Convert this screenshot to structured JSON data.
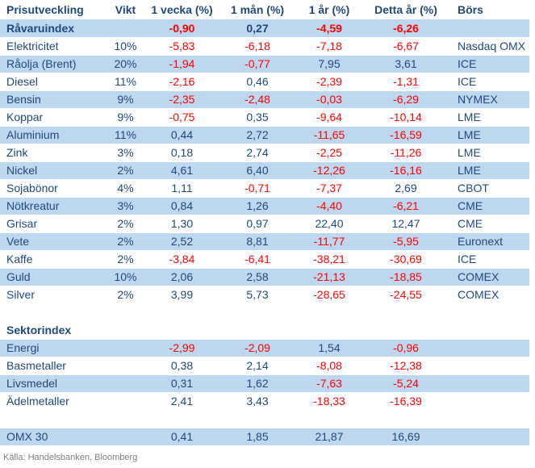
{
  "colors": {
    "text-blue": "#1F497D",
    "negative-red": "#FF0000",
    "row-shade": "#BDD7EE",
    "footer-gray": "#7F7F7F"
  },
  "table": {
    "columns": [
      {
        "key": "label",
        "label": "Prisutveckling",
        "align": "left",
        "numeric": false
      },
      {
        "key": "vikt",
        "label": "Vikt",
        "align": "center",
        "numeric": false
      },
      {
        "key": "v1w",
        "label": "1 vecka (%)",
        "align": "center",
        "numeric": true
      },
      {
        "key": "v1m",
        "label": "1 mån (%)",
        "align": "center",
        "numeric": true
      },
      {
        "key": "v1y",
        "label": "1 år (%)",
        "align": "center",
        "numeric": true
      },
      {
        "key": "ytd",
        "label": "Detta år (%)",
        "align": "center",
        "numeric": true
      },
      {
        "key": "bors",
        "label": "Börs",
        "align": "left",
        "numeric": false
      }
    ],
    "rows": [
      {
        "label": "Råvaruindex",
        "vikt": "",
        "v1w": "-0,90",
        "v1m": "0,27",
        "v1y": "-4,59",
        "ytd": "-6,26",
        "bors": "",
        "bold": true,
        "shade": true
      },
      {
        "label": "Elektricitet",
        "vikt": "10%",
        "v1w": "-5,83",
        "v1m": "-6,18",
        "v1y": "-7,18",
        "ytd": "-6,67",
        "bors": "Nasdaq OMX"
      },
      {
        "label": "Råolja (Brent)",
        "vikt": "20%",
        "v1w": "-1,94",
        "v1m": "-0,77",
        "v1y": "7,95",
        "ytd": "3,61",
        "bors": "ICE",
        "shade": true
      },
      {
        "label": "Diesel",
        "vikt": "11%",
        "v1w": "-2,16",
        "v1m": "0,46",
        "v1y": "-2,39",
        "ytd": "-1,31",
        "bors": "ICE"
      },
      {
        "label": "Bensin",
        "vikt": "9%",
        "v1w": "-2,35",
        "v1m": "-2,48",
        "v1y": "-0,03",
        "ytd": "-6,29",
        "bors": "NYMEX",
        "shade": true
      },
      {
        "label": "Koppar",
        "vikt": "9%",
        "v1w": "-0,75",
        "v1m": "0,35",
        "v1y": "-9,64",
        "ytd": "-10,14",
        "bors": "LME"
      },
      {
        "label": "Aluminium",
        "vikt": "11%",
        "v1w": "0,44",
        "v1m": "2,72",
        "v1y": "-11,65",
        "ytd": "-16,59",
        "bors": "LME",
        "shade": true
      },
      {
        "label": "Zink",
        "vikt": "3%",
        "v1w": "0,18",
        "v1m": "2,74",
        "v1y": "-2,25",
        "ytd": "-11,26",
        "bors": "LME"
      },
      {
        "label": "Nickel",
        "vikt": "2%",
        "v1w": "4,61",
        "v1m": "6,40",
        "v1y": "-12,26",
        "ytd": "-16,16",
        "bors": "LME",
        "shade": true
      },
      {
        "label": "Sojabönor",
        "vikt": "4%",
        "v1w": "1,11",
        "v1m": "-0,71",
        "v1y": "-7,37",
        "ytd": "2,69",
        "bors": "CBOT"
      },
      {
        "label": "Nötkreatur",
        "vikt": "3%",
        "v1w": "0,84",
        "v1m": "1,26",
        "v1y": "-4,40",
        "ytd": "-6,21",
        "bors": "CME",
        "shade": true
      },
      {
        "label": "Grisar",
        "vikt": "2%",
        "v1w": "1,30",
        "v1m": "0,97",
        "v1y": "22,40",
        "ytd": "12,47",
        "bors": "CME"
      },
      {
        "label": "Vete",
        "vikt": "2%",
        "v1w": "2,52",
        "v1m": "8,81",
        "v1y": "-11,77",
        "ytd": "-5,95",
        "bors": "Euronext",
        "shade": true
      },
      {
        "label": "Kaffe",
        "vikt": "2%",
        "v1w": "-3,84",
        "v1m": "-6,41",
        "v1y": "-38,21",
        "ytd": "-30,69",
        "bors": "ICE"
      },
      {
        "label": "Guld",
        "vikt": "10%",
        "v1w": "2,06",
        "v1m": "2,58",
        "v1y": "-21,13",
        "ytd": "-18,85",
        "bors": "COMEX",
        "shade": true
      },
      {
        "label": "Silver",
        "vikt": "2%",
        "v1w": "3,99",
        "v1m": "5,73",
        "v1y": "-28,65",
        "ytd": "-24,55",
        "bors": "COMEX"
      },
      {
        "spacer": true
      },
      {
        "label": "Sektorindex",
        "bold": true
      },
      {
        "label": "Energi",
        "v1w": "-2,99",
        "v1m": "-2,09",
        "v1y": "1,54",
        "ytd": "-0,96",
        "shade": true
      },
      {
        "label": "Basmetaller",
        "v1w": "0,38",
        "v1m": "2,14",
        "v1y": "-8,08",
        "ytd": "-12,38"
      },
      {
        "label": "Livsmedel",
        "v1w": "0,31",
        "v1m": "1,62",
        "v1y": "-7,63",
        "ytd": "-5,24",
        "shade": true
      },
      {
        "label": "Ädelmetaller",
        "v1w": "2,41",
        "v1m": "3,43",
        "v1y": "-18,33",
        "ytd": "-16,39"
      },
      {
        "spacer": true
      },
      {
        "label": "OMX 30",
        "v1w": "0,41",
        "v1m": "1,85",
        "v1y": "21,87",
        "ytd": "16,69",
        "shade": true
      }
    ]
  },
  "footer": {
    "text": "Källa: Handelsbanken, Bloomberg"
  }
}
